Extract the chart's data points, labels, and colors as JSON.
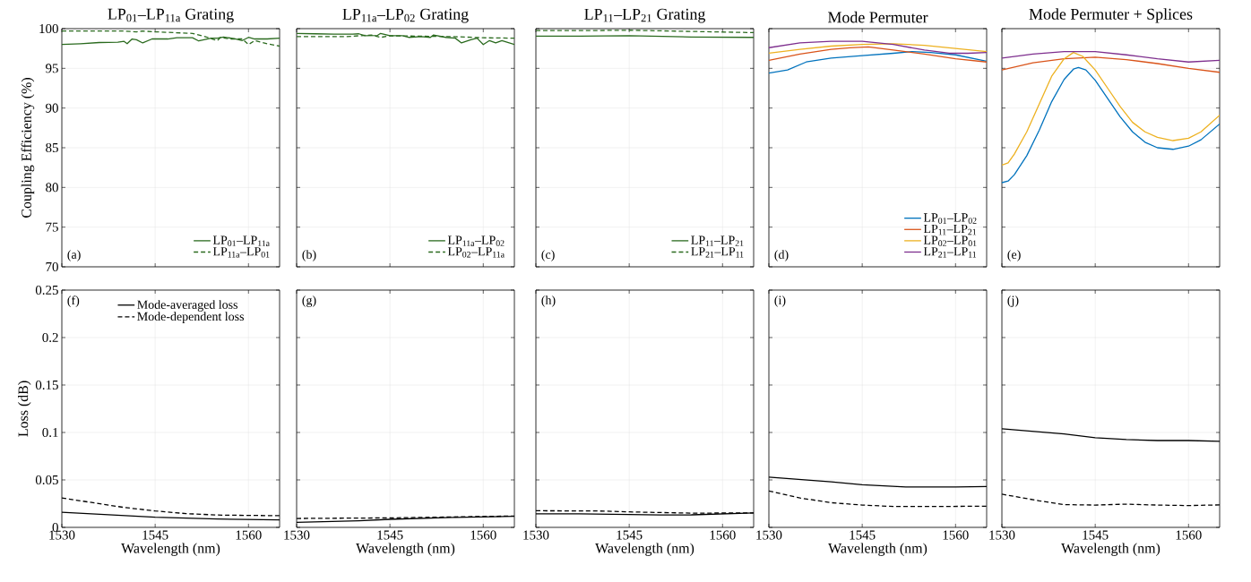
{
  "chart_data": [
    {
      "type": "line",
      "title": "LP$_{01}$–LP$_{11a}$ Grating",
      "ylabel": "Coupling Efficiency (%)",
      "annotations": [
        "(a)"
      ],
      "xlim": [
        1530,
        1565
      ],
      "xticks": [
        1530,
        1545,
        1560
      ],
      "ylim": [
        70,
        100
      ],
      "yticks": [
        70,
        75,
        80,
        85,
        90,
        95,
        100
      ],
      "grid": true,
      "legend": "bottom right",
      "tick_labels": "y",
      "series": [
        {
          "name": "LP$_{01}$–LP$_{11a}$",
          "color": "#2a6a1e",
          "line_style": "solid",
          "x": [
            1530,
            1533,
            1536,
            1539,
            1540,
            1540.5,
            1541.3,
            1542,
            1543,
            1544.5,
            1547,
            1548.5,
            1551,
            1552,
            1554,
            1555,
            1556,
            1558,
            1559,
            1560,
            1561,
            1563,
            1565
          ],
          "values": [
            98.0,
            98.1,
            98.25,
            98.3,
            98.4,
            98.1,
            98.7,
            98.6,
            98.2,
            98.7,
            98.7,
            98.85,
            98.85,
            98.45,
            98.8,
            98.8,
            98.95,
            98.7,
            98.5,
            98.9,
            98.7,
            98.7,
            98.8
          ]
        },
        {
          "name": "LP$_{11a}$–LP$_{01}$",
          "color": "#2a6a1e",
          "line_style": "dashed",
          "x": [
            1530,
            1535,
            1540,
            1542,
            1543,
            1545,
            1548,
            1551,
            1553,
            1555,
            1555.5,
            1557,
            1559,
            1560,
            1561,
            1563,
            1565
          ],
          "values": [
            99.7,
            99.7,
            99.7,
            99.6,
            99.7,
            99.6,
            99.5,
            99.4,
            99.0,
            98.5,
            98.9,
            98.7,
            98.7,
            98.0,
            98.5,
            98.1,
            97.8
          ]
        }
      ]
    },
    {
      "type": "line",
      "title": "LP$_{11a}$–LP$_{02}$ Grating",
      "annotations": [
        "(b)"
      ],
      "xlim": [
        1530,
        1565
      ],
      "xticks": [
        1530,
        1545,
        1560
      ],
      "ylim": [
        70,
        100
      ],
      "yticks": [
        70,
        75,
        80,
        85,
        90,
        95,
        100
      ],
      "grid": true,
      "legend": "bottom right",
      "tick_labels": false,
      "series": [
        {
          "name": "LP$_{11a}$–LP$_{02}$",
          "color": "#2a6a1e",
          "line_style": "solid",
          "x": [
            1530,
            1533,
            1536,
            1539,
            1540,
            1541,
            1543,
            1543.5,
            1545,
            1547,
            1548,
            1550,
            1551.5,
            1552,
            1554,
            1555.5,
            1556.5,
            1558,
            1559,
            1560,
            1561,
            1562,
            1563,
            1565
          ],
          "values": [
            99.4,
            99.35,
            99.3,
            99.3,
            99.35,
            99.1,
            99.15,
            99.4,
            99.1,
            99.1,
            98.9,
            99.0,
            98.9,
            99.2,
            98.9,
            98.8,
            98.2,
            98.6,
            98.8,
            98.0,
            98.5,
            98.2,
            98.5,
            98.0
          ]
        },
        {
          "name": "LP$_{02}$–LP$_{11a}$",
          "color": "#2a6a1e",
          "line_style": "dashed",
          "x": [
            1530,
            1538,
            1540,
            1542,
            1543.5,
            1545,
            1550,
            1555,
            1560,
            1565
          ],
          "values": [
            99.0,
            99.0,
            99.1,
            99.2,
            98.9,
            99.1,
            99.05,
            99.0,
            98.85,
            98.8
          ]
        }
      ]
    },
    {
      "type": "line",
      "title": "LP$_{11}$–LP$_{21}$ Grating",
      "annotations": [
        "(c)"
      ],
      "xlim": [
        1530,
        1565
      ],
      "xticks": [
        1530,
        1545,
        1560
      ],
      "ylim": [
        70,
        100
      ],
      "yticks": [
        70,
        75,
        80,
        85,
        90,
        95,
        100
      ],
      "grid": true,
      "legend": "bottom right",
      "tick_labels": false,
      "series": [
        {
          "name": "LP$_{11}$–LP$_{21}$",
          "color": "#2a6a1e",
          "line_style": "solid",
          "x": [
            1530,
            1537,
            1545,
            1555,
            1565
          ],
          "values": [
            99.05,
            99.05,
            99.1,
            98.95,
            98.9
          ]
        },
        {
          "name": "LP$_{21}$–LP$_{11}$",
          "color": "#2a6a1e",
          "line_style": "dashed",
          "x": [
            1530,
            1537,
            1545,
            1555,
            1565
          ],
          "values": [
            99.75,
            99.75,
            99.8,
            99.65,
            99.5
          ]
        }
      ]
    },
    {
      "type": "line",
      "title": "Mode Permuter",
      "annotations": [
        "(d)"
      ],
      "xlim": [
        1530,
        1565
      ],
      "xticks": [
        1530,
        1545,
        1560
      ],
      "ylim": [
        70,
        100
      ],
      "yticks": [
        70,
        75,
        80,
        85,
        90,
        95,
        100
      ],
      "grid": true,
      "legend": "bottom right",
      "tick_labels": false,
      "series": [
        {
          "name": "LP$_{01}$–LP$_{02}$",
          "color": "#0072bd",
          "line_style": "solid",
          "x": [
            1530,
            1533,
            1536,
            1540,
            1545,
            1550,
            1553,
            1556,
            1560,
            1565
          ],
          "values": [
            94.4,
            94.8,
            95.8,
            96.3,
            96.6,
            96.9,
            97.1,
            97.0,
            96.7,
            95.9
          ]
        },
        {
          "name": "LP$_{11}$–LP$_{21}$",
          "color": "#d95319",
          "line_style": "solid",
          "x": [
            1530,
            1535,
            1540,
            1543,
            1546,
            1550,
            1555,
            1560,
            1565
          ],
          "values": [
            96.0,
            96.8,
            97.4,
            97.6,
            97.7,
            97.3,
            96.8,
            96.2,
            95.8
          ]
        },
        {
          "name": "LP$_{02}$–LP$_{01}$",
          "color": "#edb120",
          "line_style": "solid",
          "x": [
            1530,
            1535,
            1540,
            1545,
            1550,
            1555,
            1560,
            1565
          ],
          "values": [
            96.9,
            97.4,
            97.8,
            98.0,
            98.1,
            97.9,
            97.5,
            97.1
          ]
        },
        {
          "name": "LP$_{21}$–LP$_{11}$",
          "color": "#7e2f8e",
          "line_style": "solid",
          "x": [
            1530,
            1535,
            1540,
            1545,
            1550,
            1555,
            1559,
            1562,
            1565
          ],
          "values": [
            97.6,
            98.2,
            98.4,
            98.4,
            98.0,
            97.3,
            96.9,
            96.9,
            97.0
          ]
        }
      ]
    },
    {
      "type": "line",
      "title": "Mode Permuter + Splices",
      "annotations": [
        "(e)"
      ],
      "xlim": [
        1530,
        1565
      ],
      "xticks": [
        1530,
        1545,
        1560
      ],
      "ylim": [
        70,
        100
      ],
      "yticks": [
        70,
        75,
        80,
        85,
        90,
        95,
        100
      ],
      "grid": true,
      "tick_labels": false,
      "series": [
        {
          "color": "#0072bd",
          "line_style": "solid",
          "x": [
            1530,
            1531,
            1532,
            1534,
            1536,
            1538,
            1540,
            1541.5,
            1542.3,
            1543.5,
            1545,
            1547,
            1549,
            1551,
            1553,
            1555,
            1557.5,
            1560,
            1562,
            1565
          ],
          "values": [
            80.6,
            80.8,
            81.6,
            84.0,
            87.2,
            90.8,
            93.6,
            94.9,
            95.1,
            94.8,
            93.5,
            91.2,
            88.9,
            87.0,
            85.7,
            85.0,
            84.8,
            85.2,
            86.0,
            88.0
          ]
        },
        {
          "color": "#d95319",
          "line_style": "solid",
          "x": [
            1530,
            1535,
            1540,
            1545,
            1550,
            1555,
            1560,
            1565
          ],
          "values": [
            94.8,
            95.7,
            96.2,
            96.4,
            96.1,
            95.6,
            95.0,
            94.5
          ]
        },
        {
          "color": "#edb120",
          "line_style": "solid",
          "x": [
            1530,
            1531,
            1532,
            1534,
            1536,
            1538,
            1540,
            1541.5,
            1543,
            1545,
            1547,
            1549,
            1551,
            1553,
            1555,
            1557.5,
            1560,
            1562,
            1565
          ],
          "values": [
            82.8,
            83.1,
            84.2,
            87.0,
            90.5,
            94.0,
            96.2,
            97.0,
            96.5,
            94.8,
            92.5,
            90.2,
            88.2,
            87.0,
            86.3,
            85.9,
            86.2,
            87.0,
            89.1
          ]
        },
        {
          "color": "#7e2f8e",
          "line_style": "solid",
          "x": [
            1530,
            1535,
            1540,
            1545,
            1550,
            1555,
            1560,
            1565
          ],
          "values": [
            96.3,
            96.8,
            97.1,
            97.1,
            96.7,
            96.2,
            95.8,
            96.0
          ]
        }
      ]
    },
    {
      "type": "line",
      "xlabel": "Wavelength (nm)",
      "ylabel": "Loss (dB)",
      "annotations": [
        "(f)"
      ],
      "xlim": [
        1530,
        1565
      ],
      "xticks": [
        1530,
        1545,
        1560
      ],
      "ylim": [
        0,
        0.25
      ],
      "yticks": [
        0,
        0.05,
        0.1,
        0.15,
        0.2,
        0.25
      ],
      "grid": true,
      "legend": "top",
      "series": [
        {
          "name": "Mode-averaged loss",
          "color": "#000000",
          "line_style": "solid",
          "x": [
            1530,
            1545,
            1555,
            1565
          ],
          "values": [
            0.016,
            0.0107,
            0.0088,
            0.0079
          ]
        },
        {
          "name": "Mode-dependent loss",
          "color": "#000000",
          "line_style": "dashed",
          "x": [
            1530,
            1535,
            1540,
            1545,
            1550,
            1555,
            1565
          ],
          "values": [
            0.031,
            0.026,
            0.021,
            0.0173,
            0.0145,
            0.013,
            0.0123
          ]
        }
      ]
    },
    {
      "type": "line",
      "xlabel": "Wavelength (nm)",
      "annotations": [
        "(g)"
      ],
      "xlim": [
        1530,
        1565
      ],
      "xticks": [
        1530,
        1545,
        1560
      ],
      "ylim": [
        0,
        0.25
      ],
      "yticks": [
        0,
        0.05,
        0.1,
        0.15,
        0.2,
        0.25
      ],
      "grid": true,
      "tick_labels": "x",
      "series": [
        {
          "color": "#000000",
          "line_style": "solid",
          "x": [
            1530,
            1540,
            1545,
            1555,
            1565
          ],
          "values": [
            0.0053,
            0.007,
            0.0085,
            0.0105,
            0.0116
          ]
        },
        {
          "color": "#000000",
          "line_style": "dashed",
          "x": [
            1530,
            1545,
            1555,
            1565
          ],
          "values": [
            0.0094,
            0.01,
            0.011,
            0.012
          ]
        }
      ]
    },
    {
      "type": "line",
      "xlabel": "Wavelength (nm)",
      "annotations": [
        "(h)"
      ],
      "xlim": [
        1530,
        1565
      ],
      "xticks": [
        1530,
        1545,
        1560
      ],
      "ylim": [
        0,
        0.25
      ],
      "yticks": [
        0,
        0.05,
        0.1,
        0.15,
        0.2,
        0.25
      ],
      "grid": true,
      "tick_labels": "x",
      "series": [
        {
          "color": "#000000",
          "line_style": "solid",
          "x": [
            1530,
            1537,
            1545,
            1550,
            1555,
            1565
          ],
          "values": [
            0.0142,
            0.0143,
            0.0135,
            0.013,
            0.0132,
            0.0152
          ]
        },
        {
          "color": "#000000",
          "line_style": "dashed",
          "x": [
            1530,
            1540,
            1545,
            1555,
            1565
          ],
          "values": [
            0.0175,
            0.0173,
            0.0163,
            0.015,
            0.0152
          ]
        }
      ]
    },
    {
      "type": "line",
      "xlabel": "Wavelength (nm)",
      "annotations": [
        "(i)"
      ],
      "xlim": [
        1530,
        1565
      ],
      "xticks": [
        1530,
        1545,
        1560
      ],
      "ylim": [
        0,
        0.25
      ],
      "yticks": [
        0,
        0.05,
        0.1,
        0.15,
        0.2,
        0.25
      ],
      "grid": true,
      "tick_labels": "x",
      "series": [
        {
          "color": "#000000",
          "line_style": "solid",
          "x": [
            1530,
            1540,
            1545,
            1552,
            1560,
            1565
          ],
          "values": [
            0.053,
            0.048,
            0.045,
            0.0425,
            0.0425,
            0.043
          ]
        },
        {
          "color": "#000000",
          "line_style": "dashed",
          "x": [
            1530,
            1535,
            1540,
            1545,
            1550,
            1555,
            1565
          ],
          "values": [
            0.0384,
            0.031,
            0.026,
            0.0235,
            0.022,
            0.022,
            0.0223
          ]
        }
      ]
    },
    {
      "type": "line",
      "xlabel": "Wavelength (nm)",
      "annotations": [
        "(j)"
      ],
      "xlim": [
        1530,
        1565
      ],
      "xticks": [
        1530,
        1545,
        1560
      ],
      "ylim": [
        0,
        0.25
      ],
      "yticks": [
        0,
        0.05,
        0.1,
        0.15,
        0.2,
        0.25
      ],
      "grid": true,
      "tick_labels": "x",
      "series": [
        {
          "color": "#000000",
          "line_style": "solid",
          "x": [
            1530,
            1540,
            1545,
            1550,
            1555,
            1560,
            1565
          ],
          "values": [
            0.1039,
            0.0985,
            0.0945,
            0.0925,
            0.0915,
            0.0915,
            0.0906
          ]
        },
        {
          "color": "#000000",
          "line_style": "dashed",
          "x": [
            1530,
            1536,
            1540,
            1545,
            1550,
            1555,
            1560,
            1565
          ],
          "values": [
            0.035,
            0.028,
            0.024,
            0.0235,
            0.0245,
            0.0235,
            0.023,
            0.0237
          ]
        }
      ]
    }
  ]
}
